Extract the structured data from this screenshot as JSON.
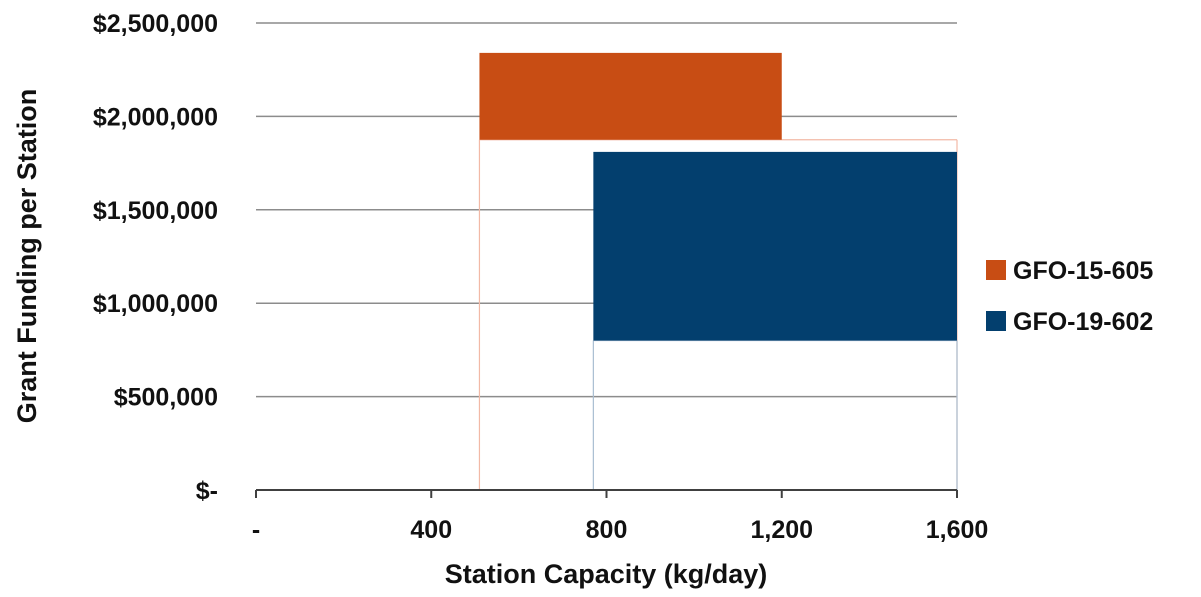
{
  "chart_data": {
    "type": "range-bar",
    "title": "",
    "xlabel": "Station Capacity (kg/day)",
    "ylabel": "Grant Funding per Station",
    "xlim": [
      0,
      1600
    ],
    "ylim": [
      0,
      2500000
    ],
    "x_ticks": [
      0,
      400,
      800,
      1200,
      1600
    ],
    "x_tick_labels": [
      "-",
      "400",
      "800",
      "1,200",
      "1,600"
    ],
    "y_ticks": [
      0,
      500000,
      1000000,
      1500000,
      2000000,
      2500000
    ],
    "y_tick_labels": [
      "$-",
      "$500,000",
      "$1,000,000",
      "$1,500,000",
      "$2,000,000",
      "$2,500,000"
    ],
    "grid": "horizontal",
    "legend_position": "right",
    "series": [
      {
        "name": "GFO-15-605",
        "color": "#c84d14",
        "outline_color": "#f2b9a6",
        "x_range": [
          510,
          1200
        ],
        "y_range": [
          1875000,
          2340000
        ]
      },
      {
        "name": "GFO-19-602",
        "color": "#033f6e",
        "outline_color": "#a9bdd1",
        "x_range": [
          770,
          1610
        ],
        "y_range": [
          800000,
          1810000
        ]
      }
    ]
  }
}
